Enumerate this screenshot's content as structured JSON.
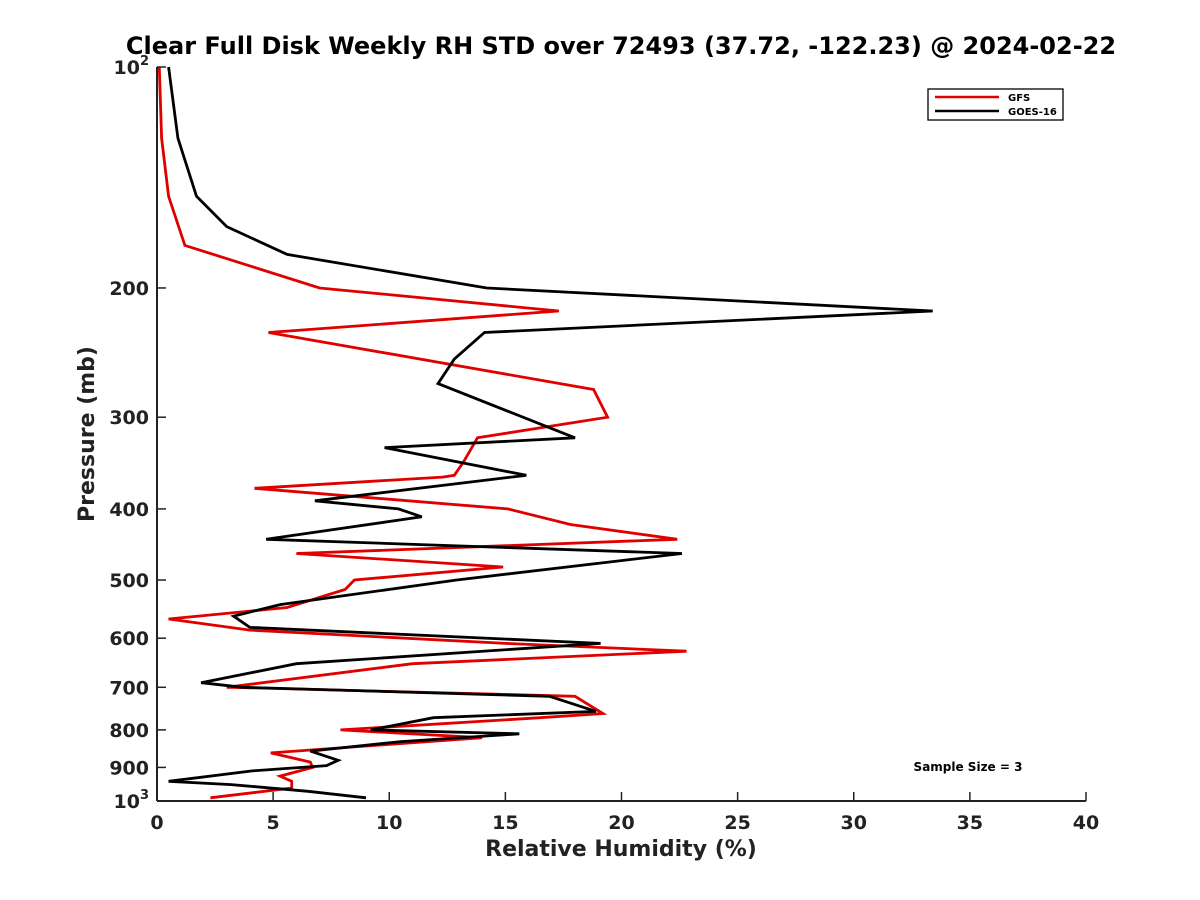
{
  "chart_data": {
    "type": "line",
    "title": "Clear Full Disk Weekly RH STD over 72493 (37.72, -122.23) @ 2024-02-22",
    "xlabel": "Relative Humidity (%)",
    "ylabel": "Pressure (mb)",
    "xlim": [
      0,
      40
    ],
    "ylim": [
      100,
      1000
    ],
    "y_scale": "log",
    "y_reversed": true,
    "x_ticks": [
      0,
      5,
      10,
      15,
      20,
      25,
      30,
      35,
      40
    ],
    "x_tick_labels": [
      "0",
      "5",
      "10",
      "15",
      "20",
      "25",
      "30",
      "35",
      "40"
    ],
    "y_ticks": [
      100,
      200,
      300,
      400,
      500,
      600,
      700,
      800,
      900,
      1000
    ],
    "y_tick_labels": [
      {
        "base": "10",
        "sup": "2"
      },
      {
        "base": "200",
        "sup": ""
      },
      {
        "base": "300",
        "sup": ""
      },
      {
        "base": "400",
        "sup": ""
      },
      {
        "base": "500",
        "sup": ""
      },
      {
        "base": "600",
        "sup": ""
      },
      {
        "base": "700",
        "sup": ""
      },
      {
        "base": "800",
        "sup": ""
      },
      {
        "base": "900",
        "sup": ""
      },
      {
        "base": "10",
        "sup": "3"
      }
    ],
    "grid": false,
    "legend_position": "top-right",
    "annotation": "Sample Size = 3",
    "series": [
      {
        "name": "GFS",
        "color": "#e00000",
        "points": [
          [
            0.1,
            100
          ],
          [
            0.2,
            125
          ],
          [
            0.5,
            150
          ],
          [
            1.2,
            175
          ],
          [
            7,
            200
          ],
          [
            17.3,
            215
          ],
          [
            4.8,
            230
          ],
          [
            18.8,
            275
          ],
          [
            19.4,
            300
          ],
          [
            13.8,
            320
          ],
          [
            13.2,
            345
          ],
          [
            12.8,
            360
          ],
          [
            12.3,
            362
          ],
          [
            4.2,
            375
          ],
          [
            15.1,
            400
          ],
          [
            17.8,
            420
          ],
          [
            22.4,
            440
          ],
          [
            6,
            460
          ],
          [
            14.9,
            480
          ],
          [
            8.5,
            500
          ],
          [
            8.1,
            515
          ],
          [
            5.6,
            545
          ],
          [
            0.5,
            565
          ],
          [
            4,
            585
          ],
          [
            15,
            610
          ],
          [
            22.8,
            625
          ],
          [
            11,
            650
          ],
          [
            3,
            700
          ],
          [
            3.2,
            700
          ],
          [
            18,
            720
          ],
          [
            19.2,
            760
          ],
          [
            16.5,
            770
          ],
          [
            7.9,
            800
          ],
          [
            14,
            820
          ],
          [
            4.9,
            860
          ],
          [
            6.6,
            885
          ],
          [
            6.7,
            900
          ],
          [
            5.3,
            925
          ],
          [
            5.8,
            940
          ],
          [
            5.8,
            960
          ],
          [
            2.3,
            990
          ]
        ]
      },
      {
        "name": "GOES-16",
        "color": "#000000",
        "points": [
          [
            0.5,
            100
          ],
          [
            0.9,
            125
          ],
          [
            1.7,
            150
          ],
          [
            3,
            165
          ],
          [
            5.6,
            180
          ],
          [
            14.2,
            200
          ],
          [
            33.4,
            215
          ],
          [
            14.1,
            230
          ],
          [
            12.8,
            250
          ],
          [
            12.1,
            270
          ],
          [
            18,
            320
          ],
          [
            9.8,
            330
          ],
          [
            15.9,
            360
          ],
          [
            6.8,
            390
          ],
          [
            10.4,
            400
          ],
          [
            11.4,
            410
          ],
          [
            4.7,
            440
          ],
          [
            22.6,
            460
          ],
          [
            12.9,
            500
          ],
          [
            5.3,
            540
          ],
          [
            3.3,
            560
          ],
          [
            4,
            580
          ],
          [
            19.1,
            610
          ],
          [
            6,
            650
          ],
          [
            1.9,
            690
          ],
          [
            3.7,
            700
          ],
          [
            16.9,
            720
          ],
          [
            18.9,
            755
          ],
          [
            11.9,
            770
          ],
          [
            9.2,
            800
          ],
          [
            15.6,
            810
          ],
          [
            10.5,
            830
          ],
          [
            6.6,
            855
          ],
          [
            7.8,
            880
          ],
          [
            7.3,
            895
          ],
          [
            4.1,
            910
          ],
          [
            0.5,
            940
          ],
          [
            3.2,
            950
          ],
          [
            6.5,
            970
          ],
          [
            9,
            990
          ]
        ]
      }
    ]
  }
}
